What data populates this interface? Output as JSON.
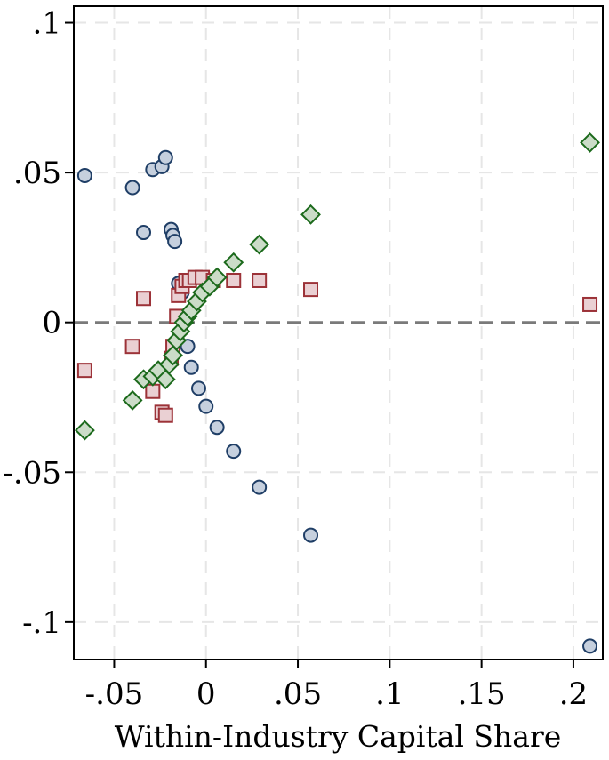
{
  "chart_data": {
    "type": "scatter",
    "title": "",
    "xlabel": "Within-Industry Capital Share",
    "ylabel": "",
    "xlim": [
      -0.072,
      0.216
    ],
    "ylim": [
      -0.1125,
      0.1055
    ],
    "xticks": [
      {
        "value": -0.05,
        "label": "-.05"
      },
      {
        "value": 0,
        "label": "0"
      },
      {
        "value": 0.05,
        "label": ".05"
      },
      {
        "value": 0.1,
        "label": ".1"
      },
      {
        "value": 0.15,
        "label": ".15"
      },
      {
        "value": 0.2,
        "label": ".2"
      }
    ],
    "yticks": [
      {
        "value": 0.1,
        "label": ".1"
      },
      {
        "value": 0.05,
        "label": ".05"
      },
      {
        "value": 0,
        "label": "0"
      },
      {
        "value": -0.05,
        "label": "-.05"
      },
      {
        "value": -0.1,
        "label": "-.1"
      }
    ],
    "grid": true,
    "reference_line_y": 0,
    "series": [
      {
        "name": "circles",
        "marker": "circle",
        "fill": "#c6d0de",
        "stroke": "#1f3e66",
        "x": [
          -0.066,
          -0.04,
          -0.034,
          -0.029,
          -0.024,
          -0.022,
          -0.019,
          -0.018,
          -0.017,
          -0.015,
          -0.013,
          -0.012,
          -0.01,
          -0.008,
          -0.004,
          0.0,
          0.006,
          0.015,
          0.029,
          0.057,
          0.209
        ],
        "y": [
          0.049,
          0.045,
          0.03,
          0.051,
          0.052,
          0.055,
          0.031,
          0.029,
          0.027,
          0.013,
          0.01,
          0.002,
          -0.008,
          -0.015,
          -0.022,
          -0.028,
          -0.035,
          -0.043,
          -0.055,
          -0.071,
          -0.108
        ]
      },
      {
        "name": "squares",
        "marker": "square",
        "fill": "#ead0d3",
        "stroke": "#9c3238",
        "x": [
          -0.066,
          -0.04,
          -0.034,
          -0.029,
          -0.024,
          -0.022,
          -0.019,
          -0.018,
          -0.016,
          -0.015,
          -0.013,
          -0.011,
          -0.009,
          -0.006,
          -0.002,
          0.004,
          0.015,
          0.029,
          0.057,
          0.209
        ],
        "y": [
          -0.016,
          -0.008,
          0.008,
          -0.023,
          -0.03,
          -0.031,
          -0.012,
          -0.008,
          0.002,
          0.009,
          0.012,
          0.014,
          0.014,
          0.015,
          0.015,
          0.014,
          0.014,
          0.014,
          0.011,
          0.006
        ]
      },
      {
        "name": "diamonds",
        "marker": "diamond",
        "fill": "#cbdcc8",
        "stroke": "#1c6a1c",
        "x": [
          -0.066,
          -0.04,
          -0.034,
          -0.029,
          -0.026,
          -0.022,
          -0.02,
          -0.018,
          -0.016,
          -0.014,
          -0.012,
          -0.01,
          -0.008,
          -0.005,
          -0.002,
          0.002,
          0.006,
          0.015,
          0.029,
          0.057,
          0.209
        ],
        "y": [
          -0.036,
          -0.026,
          -0.019,
          -0.018,
          -0.016,
          -0.019,
          -0.014,
          -0.011,
          -0.006,
          -0.003,
          0.0,
          0.002,
          0.004,
          0.007,
          0.01,
          0.012,
          0.015,
          0.02,
          0.026,
          0.036,
          0.06
        ]
      }
    ]
  }
}
